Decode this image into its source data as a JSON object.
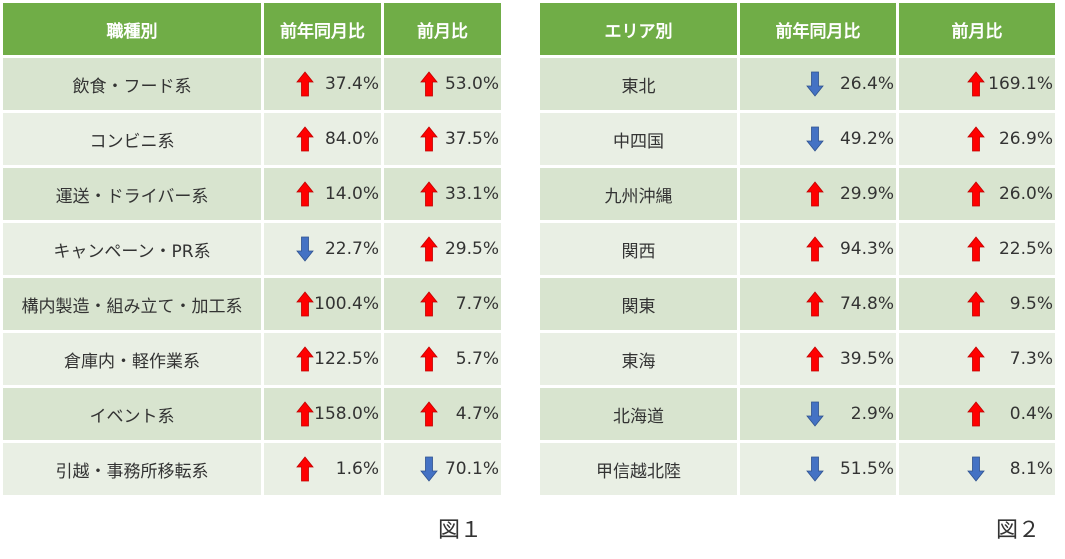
{
  "table1": {
    "headers": [
      "職種別",
      "前年同月比",
      "前月比"
    ],
    "rows": [
      {
        "name": "飲食・フード系",
        "yoy": "37.4%",
        "yoy_dir": "up",
        "mom": "53.0%",
        "mom_dir": "up"
      },
      {
        "name": "コンビニ系",
        "yoy": "84.0%",
        "yoy_dir": "up",
        "mom": "37.5%",
        "mom_dir": "up"
      },
      {
        "name": "運送・ドライバー系",
        "yoy": "14.0%",
        "yoy_dir": "up",
        "mom": "33.1%",
        "mom_dir": "up"
      },
      {
        "name": "キャンペーン・PR系",
        "yoy": "22.7%",
        "yoy_dir": "down",
        "mom": "29.5%",
        "mom_dir": "up"
      },
      {
        "name": "構内製造・組み立て・加工系",
        "yoy": "100.4%",
        "yoy_dir": "up",
        "mom": "7.7%",
        "mom_dir": "up"
      },
      {
        "name": "倉庫内・軽作業系",
        "yoy": "122.5%",
        "yoy_dir": "up",
        "mom": "5.7%",
        "mom_dir": "up"
      },
      {
        "name": "イベント系",
        "yoy": "158.0%",
        "yoy_dir": "up",
        "mom": "4.7%",
        "mom_dir": "up"
      },
      {
        "name": "引越・事務所移転系",
        "yoy": "1.6%",
        "yoy_dir": "up",
        "mom": "70.1%",
        "mom_dir": "down"
      }
    ],
    "caption": "図１"
  },
  "table2": {
    "headers": [
      "エリア別",
      "前年同月比",
      "前月比"
    ],
    "rows": [
      {
        "name": "東北",
        "yoy": "26.4%",
        "yoy_dir": "down",
        "mom": "169.1%",
        "mom_dir": "up"
      },
      {
        "name": "中四国",
        "yoy": "49.2%",
        "yoy_dir": "down",
        "mom": "26.9%",
        "mom_dir": "up"
      },
      {
        "name": "九州沖縄",
        "yoy": "29.9%",
        "yoy_dir": "up",
        "mom": "26.0%",
        "mom_dir": "up"
      },
      {
        "name": "関西",
        "yoy": "94.3%",
        "yoy_dir": "up",
        "mom": "22.5%",
        "mom_dir": "up"
      },
      {
        "name": "関東",
        "yoy": "74.8%",
        "yoy_dir": "up",
        "mom": "9.5%",
        "mom_dir": "up"
      },
      {
        "name": "東海",
        "yoy": "39.5%",
        "yoy_dir": "up",
        "mom": "7.3%",
        "mom_dir": "up"
      },
      {
        "name": "北海道",
        "yoy": "2.9%",
        "yoy_dir": "down",
        "mom": "0.4%",
        "mom_dir": "up"
      },
      {
        "name": "甲信越北陸",
        "yoy": "51.5%",
        "yoy_dir": "down",
        "mom": "8.1%",
        "mom_dir": "down"
      }
    ],
    "caption": "図２"
  },
  "colors": {
    "header_bg": "#70ad47",
    "row_odd": "#d8e4cf",
    "row_even": "#e9efe4",
    "arrow_up": "#ff0000",
    "arrow_down": "#4472c4"
  },
  "icons": {
    "up": "arrow-up-icon",
    "down": "arrow-down-icon"
  }
}
